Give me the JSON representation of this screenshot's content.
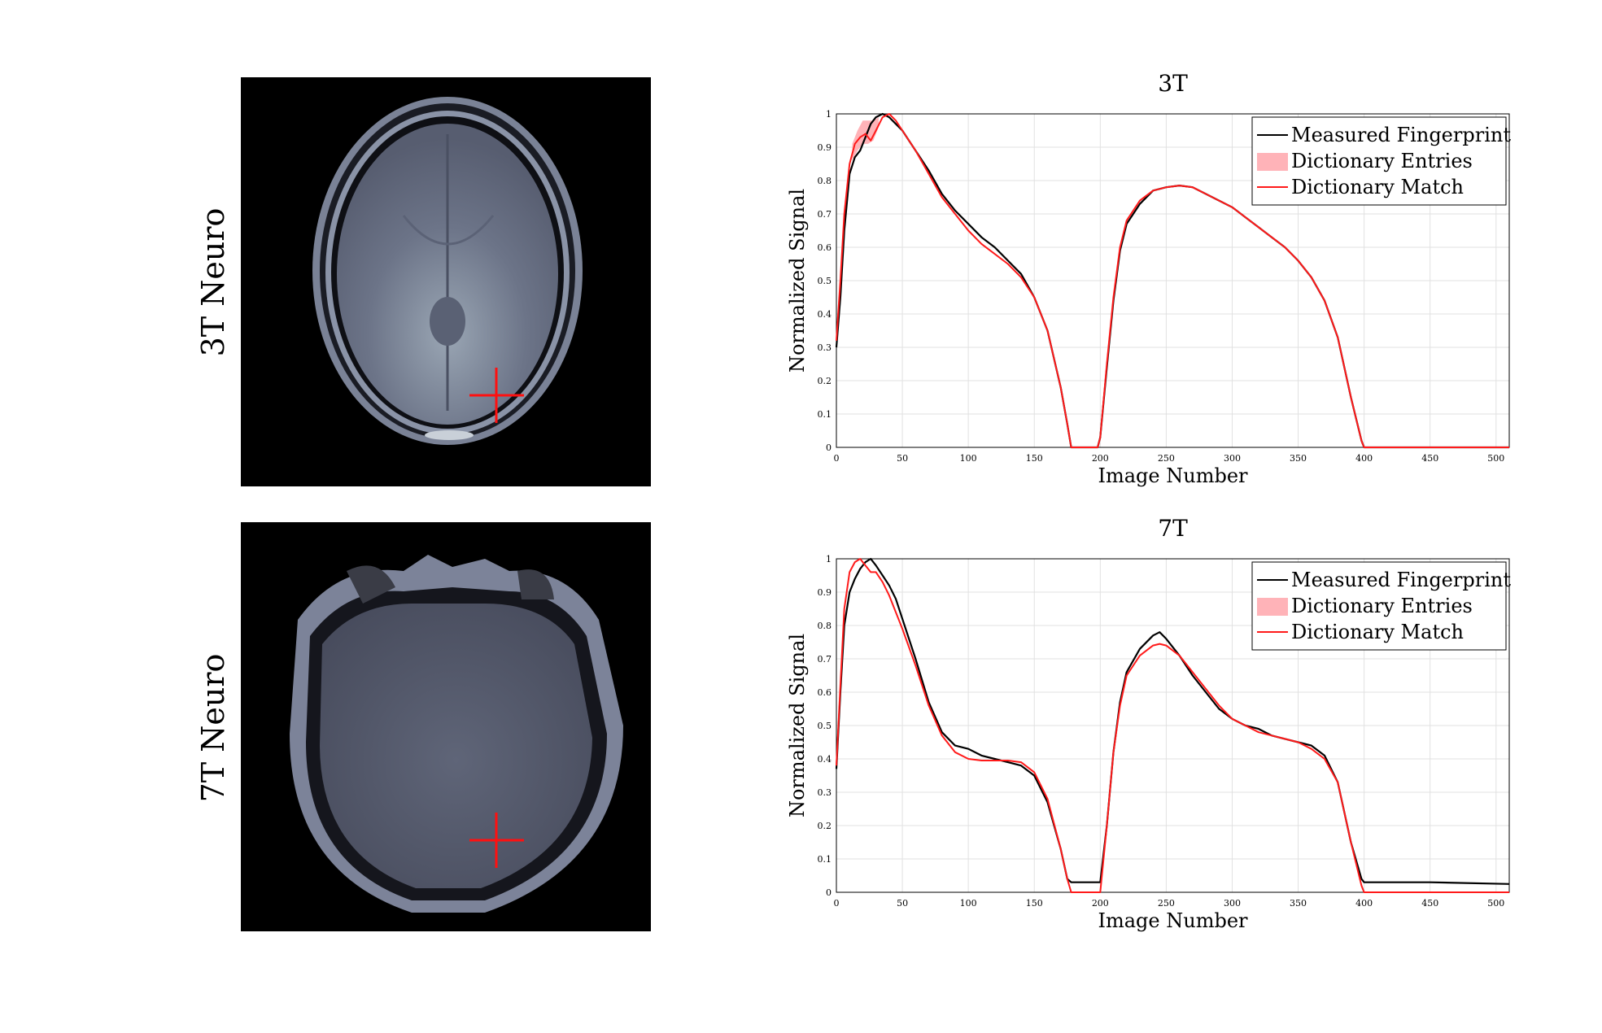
{
  "panels": [
    {
      "label": "3T Neuro"
    },
    {
      "label": "7T Neuro"
    }
  ],
  "colors": {
    "measured": "#000000",
    "match": "#ff1a1a",
    "entries": "#ffb3b8",
    "crosshair": "#ff1010",
    "grid": "#e1e1e1"
  },
  "chart_data": [
    {
      "type": "line",
      "title": "3T",
      "xlabel": "Image Number",
      "ylabel": "Normalized Signal",
      "xlim": [
        0,
        510
      ],
      "ylim": [
        0,
        1
      ],
      "xticks": [
        "0",
        "50",
        "100",
        "150",
        "200",
        "250",
        "300",
        "350",
        "400",
        "450",
        "500"
      ],
      "yticks": [
        "0",
        "0.1",
        "0.2",
        "0.3",
        "0.4",
        "0.5",
        "0.6",
        "0.7",
        "0.8",
        "0.9",
        "1"
      ],
      "grid": true,
      "legend_position": "top-right",
      "legend": [
        "Measured Fingerprint",
        "Dictionary Entries",
        "Dictionary Match"
      ],
      "series": [
        {
          "name": "Measured Fingerprint",
          "x": [
            0,
            3,
            6,
            10,
            14,
            18,
            22,
            26,
            30,
            35,
            40,
            45,
            50,
            60,
            70,
            80,
            90,
            100,
            110,
            120,
            130,
            140,
            150,
            160,
            170,
            175,
            178,
            190,
            198,
            200,
            205,
            210,
            215,
            220,
            230,
            240,
            250,
            260,
            270,
            280,
            290,
            300,
            310,
            320,
            330,
            340,
            350,
            360,
            370,
            380,
            390,
            398,
            400,
            450,
            510
          ],
          "y": [
            0.3,
            0.45,
            0.65,
            0.82,
            0.87,
            0.89,
            0.93,
            0.97,
            0.99,
            1.0,
            0.99,
            0.97,
            0.95,
            0.89,
            0.83,
            0.76,
            0.71,
            0.67,
            0.63,
            0.6,
            0.56,
            0.52,
            0.45,
            0.35,
            0.18,
            0.07,
            0.0,
            0.0,
            0.0,
            0.03,
            0.24,
            0.44,
            0.59,
            0.67,
            0.73,
            0.77,
            0.78,
            0.785,
            0.78,
            0.76,
            0.74,
            0.72,
            0.69,
            0.66,
            0.63,
            0.6,
            0.56,
            0.51,
            0.44,
            0.33,
            0.15,
            0.02,
            0.0,
            0.0,
            0.0
          ]
        },
        {
          "name": "Dictionary Entries",
          "x": [
            12,
            16,
            20,
            24,
            28,
            32
          ],
          "low": [
            0.86,
            0.89,
            0.91,
            0.91,
            0.92,
            0.96
          ],
          "high": [
            0.91,
            0.95,
            0.98,
            0.98,
            0.98,
            0.99
          ]
        },
        {
          "name": "Dictionary Match",
          "x": [
            0,
            3,
            6,
            10,
            14,
            18,
            22,
            26,
            30,
            35,
            40,
            45,
            50,
            60,
            70,
            80,
            90,
            100,
            110,
            120,
            130,
            140,
            150,
            160,
            170,
            175,
            178,
            190,
            198,
            200,
            205,
            210,
            215,
            220,
            230,
            240,
            250,
            260,
            270,
            280,
            290,
            300,
            310,
            320,
            330,
            340,
            350,
            360,
            370,
            380,
            390,
            398,
            400,
            450,
            510
          ],
          "y": [
            0.32,
            0.5,
            0.7,
            0.85,
            0.91,
            0.93,
            0.94,
            0.92,
            0.95,
            0.99,
            1.0,
            0.98,
            0.95,
            0.89,
            0.82,
            0.75,
            0.7,
            0.65,
            0.61,
            0.58,
            0.55,
            0.51,
            0.45,
            0.35,
            0.18,
            0.07,
            0.0,
            0.0,
            0.0,
            0.03,
            0.25,
            0.45,
            0.6,
            0.68,
            0.74,
            0.77,
            0.78,
            0.785,
            0.78,
            0.76,
            0.74,
            0.72,
            0.69,
            0.66,
            0.63,
            0.6,
            0.56,
            0.51,
            0.44,
            0.33,
            0.15,
            0.02,
            0.0,
            0.0,
            0.0
          ]
        }
      ]
    },
    {
      "type": "line",
      "title": "7T",
      "xlabel": "Image Number",
      "ylabel": "Normalized Signal",
      "xlim": [
        0,
        510
      ],
      "ylim": [
        0,
        1
      ],
      "xticks": [
        "0",
        "50",
        "100",
        "150",
        "200",
        "250",
        "300",
        "350",
        "400",
        "450",
        "500"
      ],
      "yticks": [
        "0",
        "0.1",
        "0.2",
        "0.3",
        "0.4",
        "0.5",
        "0.6",
        "0.7",
        "0.8",
        "0.9",
        "1"
      ],
      "grid": true,
      "legend_position": "top-right",
      "legend": [
        "Measured Fingerprint",
        "Dictionary Entries",
        "Dictionary Match"
      ],
      "series": [
        {
          "name": "Measured Fingerprint",
          "x": [
            0,
            3,
            6,
            10,
            14,
            18,
            22,
            26,
            30,
            35,
            40,
            45,
            50,
            60,
            70,
            80,
            90,
            100,
            110,
            120,
            130,
            140,
            150,
            160,
            170,
            175,
            178,
            190,
            198,
            200,
            205,
            210,
            215,
            220,
            230,
            240,
            245,
            250,
            260,
            270,
            280,
            290,
            300,
            310,
            320,
            330,
            340,
            350,
            360,
            370,
            380,
            390,
            398,
            400,
            450,
            510
          ],
          "y": [
            0.37,
            0.6,
            0.8,
            0.9,
            0.94,
            0.97,
            0.99,
            1.0,
            0.98,
            0.95,
            0.92,
            0.88,
            0.82,
            0.7,
            0.57,
            0.48,
            0.44,
            0.43,
            0.41,
            0.4,
            0.39,
            0.38,
            0.35,
            0.27,
            0.13,
            0.04,
            0.03,
            0.03,
            0.03,
            0.03,
            0.2,
            0.42,
            0.57,
            0.66,
            0.73,
            0.77,
            0.78,
            0.76,
            0.71,
            0.65,
            0.6,
            0.55,
            0.52,
            0.5,
            0.49,
            0.47,
            0.46,
            0.45,
            0.44,
            0.41,
            0.33,
            0.15,
            0.04,
            0.03,
            0.03,
            0.025
          ]
        },
        {
          "name": "Dictionary Match",
          "x": [
            0,
            3,
            6,
            10,
            14,
            18,
            22,
            26,
            30,
            35,
            40,
            45,
            50,
            60,
            70,
            80,
            90,
            100,
            110,
            120,
            130,
            140,
            150,
            160,
            170,
            175,
            178,
            190,
            198,
            200,
            205,
            210,
            215,
            220,
            230,
            240,
            245,
            250,
            260,
            270,
            280,
            290,
            300,
            310,
            320,
            330,
            340,
            350,
            360,
            370,
            380,
            390,
            398,
            400,
            450,
            510
          ],
          "y": [
            0.38,
            0.62,
            0.85,
            0.96,
            0.99,
            1.0,
            0.98,
            0.96,
            0.96,
            0.93,
            0.89,
            0.84,
            0.79,
            0.68,
            0.56,
            0.47,
            0.42,
            0.4,
            0.395,
            0.395,
            0.395,
            0.39,
            0.36,
            0.28,
            0.13,
            0.04,
            0.0,
            0.0,
            0.0,
            0.0,
            0.2,
            0.42,
            0.56,
            0.65,
            0.71,
            0.74,
            0.745,
            0.74,
            0.71,
            0.66,
            0.61,
            0.56,
            0.52,
            0.5,
            0.48,
            0.47,
            0.46,
            0.45,
            0.43,
            0.4,
            0.33,
            0.15,
            0.02,
            0.0,
            0.0,
            0.0
          ]
        }
      ]
    }
  ]
}
